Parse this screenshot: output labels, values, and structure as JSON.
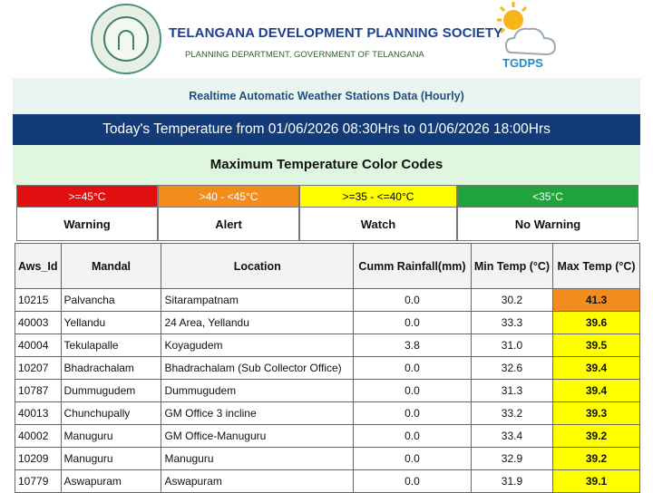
{
  "header": {
    "title": "TELANGANA DEVELOPMENT PLANNING SOCIETY",
    "subtitle": "PLANNING DEPARTMENT, GOVERNMENT OF TELANGANA",
    "logo_text": "TGDPS"
  },
  "realtime_title": "Realtime Automatic Weather Stations Data (Hourly)",
  "today_title": "Today's Temperature from 01/06/2026 08:30Hrs to 01/06/2026 18:00Hrs",
  "color_codes": {
    "title": "Maximum Temperature Color Codes",
    "items": [
      {
        "range": ">=45°C",
        "label": "Warning",
        "color": "#e01010",
        "text_color": "#ffffff"
      },
      {
        "range": ">40 - <45°C",
        "label": "Alert",
        "color": "#f28c1c",
        "text_color": "#ffffff"
      },
      {
        "range": ">=35 - <=40°C",
        "label": "Watch",
        "color": "#ffff00",
        "text_color": "#000000"
      },
      {
        "range": "<35°C",
        "label": "No Warning",
        "color": "#1ea43a",
        "text_color": "#ffffff"
      }
    ]
  },
  "table": {
    "headers": [
      "Aws_Id",
      "Mandal",
      "Location",
      "Cumm Rainfall(mm)",
      "Min Temp (°C)",
      "Max Temp (°C)"
    ],
    "rows": [
      {
        "aws_id": "10215",
        "mandal": "Palvancha",
        "location": "Sitarampatnam",
        "rainfall": "0.0",
        "min": "30.2",
        "max": "41.3",
        "max_color": "#f28c1c"
      },
      {
        "aws_id": "40003",
        "mandal": "Yellandu",
        "location": "24 Area, Yellandu",
        "rainfall": "0.0",
        "min": "33.3",
        "max": "39.6",
        "max_color": "#ffff00"
      },
      {
        "aws_id": "40004",
        "mandal": "Tekulapalle",
        "location": "Koyagudem",
        "rainfall": "3.8",
        "min": "31.0",
        "max": "39.5",
        "max_color": "#ffff00"
      },
      {
        "aws_id": "10207",
        "mandal": "Bhadrachalam",
        "location": "Bhadrachalam (Sub Collector Office)",
        "rainfall": "0.0",
        "min": "32.6",
        "max": "39.4",
        "max_color": "#ffff00"
      },
      {
        "aws_id": "10787",
        "mandal": "Dummugudem",
        "location": "Dummugudem",
        "rainfall": "0.0",
        "min": "31.3",
        "max": "39.4",
        "max_color": "#ffff00"
      },
      {
        "aws_id": "40013",
        "mandal": "Chunchupally",
        "location": "GM Office 3 incline",
        "rainfall": "0.0",
        "min": "33.2",
        "max": "39.3",
        "max_color": "#ffff00"
      },
      {
        "aws_id": "40002",
        "mandal": "Manuguru",
        "location": "GM Office-Manuguru",
        "rainfall": "0.0",
        "min": "33.4",
        "max": "39.2",
        "max_color": "#ffff00"
      },
      {
        "aws_id": "10209",
        "mandal": "Manuguru",
        "location": "Manuguru",
        "rainfall": "0.0",
        "min": "32.9",
        "max": "39.2",
        "max_color": "#ffff00"
      },
      {
        "aws_id": "10779",
        "mandal": "Aswapuram",
        "location": "Aswapuram",
        "rainfall": "0.0",
        "min": "31.9",
        "max": "39.1",
        "max_color": "#ffff00"
      }
    ]
  }
}
